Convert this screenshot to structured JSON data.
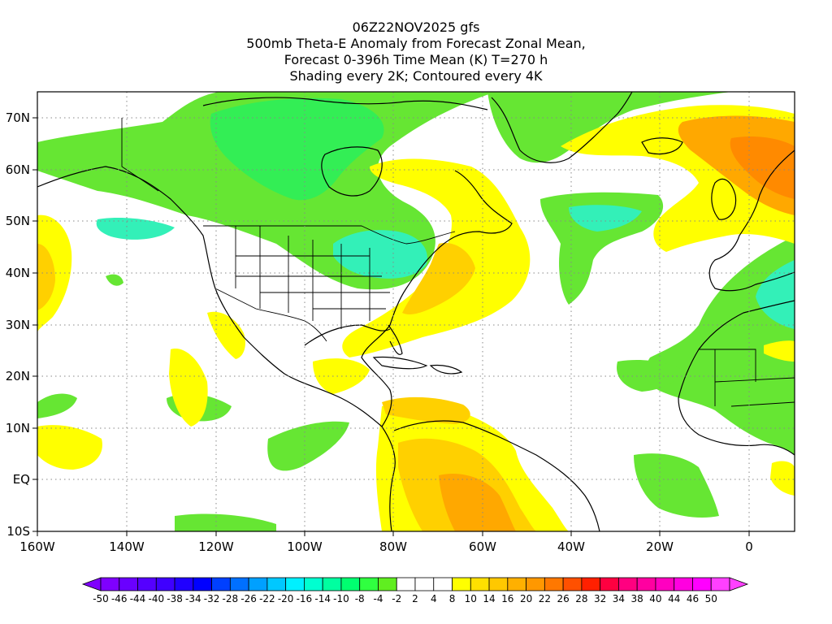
{
  "title": {
    "line1": "06Z22NOV2025 gfs",
    "line2": "500mb Theta-E Anomaly from Forecast Zonal Mean,",
    "line3": "Forecast 0-396h Time Mean (K) T=270 h",
    "line4": "Shading every 2K; Contoured every 4K"
  },
  "axes": {
    "x_ticks": [
      "160W",
      "140W",
      "120W",
      "100W",
      "80W",
      "60W",
      "40W",
      "20W",
      "0"
    ],
    "y_ticks": [
      "70N",
      "60N",
      "50N",
      "40N",
      "30N",
      "20N",
      "10N",
      "EQ",
      "10S"
    ]
  },
  "colorbar": {
    "labels": [
      "-50",
      "-46",
      "-44",
      "-40",
      "-38",
      "-34",
      "-32",
      "-28",
      "-26",
      "-22",
      "-20",
      "-16",
      "-14",
      "-10",
      "-8",
      "-4",
      "-2",
      "2",
      "4",
      "8",
      "10",
      "14",
      "16",
      "20",
      "22",
      "26",
      "28",
      "32",
      "34",
      "38",
      "40",
      "44",
      "46",
      "50"
    ],
    "colors": [
      "#7f00ff",
      "#6a00ff",
      "#5500ff",
      "#3f00ff",
      "#2000ff",
      "#0000ff",
      "#0040ff",
      "#0070ff",
      "#00a0ff",
      "#00c8ff",
      "#00f0ff",
      "#00ffd0",
      "#00ffa0",
      "#00ff70",
      "#30ff40",
      "#60ee20",
      "#ffffff",
      "#ffffff",
      "#ffffff",
      "#ffff00",
      "#ffe000",
      "#ffc800",
      "#ffb000",
      "#ff9800",
      "#ff7800",
      "#ff5000",
      "#ff2000",
      "#ff0040",
      "#ff0080",
      "#ff00a0",
      "#ff00c0",
      "#ff00e0",
      "#ff00ff",
      "#ff40ff"
    ]
  },
  "colors": {
    "green": "#66e633",
    "green_dark": "#33ee55",
    "teal": "#33f0b8",
    "yellow": "#ffff00",
    "yellow_orange": "#ffd000",
    "orange": "#ffa800",
    "orange_dark": "#ff8a00",
    "grid": "#888888"
  }
}
